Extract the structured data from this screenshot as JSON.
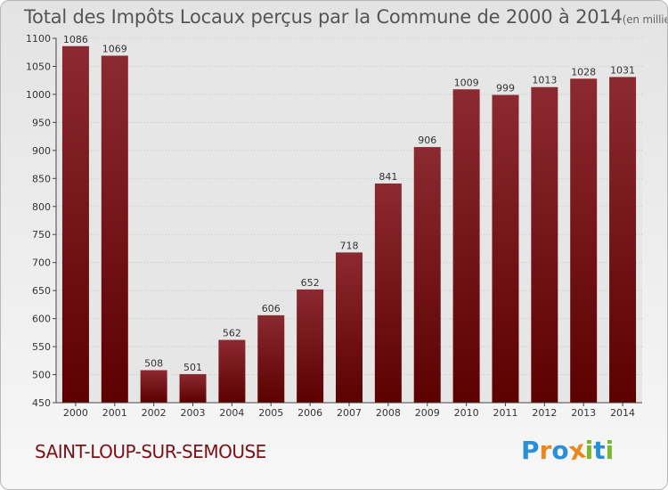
{
  "header": {
    "title": "Total des Impôts Locaux perçus par la Commune de 2000 à 2014",
    "subtitle": "(en milliers d'€)"
  },
  "footer": {
    "commune": "SAINT-LOUP-SUR-SEMOUSE",
    "logo_letters": [
      "P",
      "r",
      "o",
      "x",
      "i",
      "t",
      "i"
    ],
    "logo_colors": [
      "#2a8fd6",
      "#e8891e",
      "#2a8fd6",
      "#e8891e",
      "#78b82a",
      "#2a8fd6",
      "#78b82a"
    ]
  },
  "chart_data": {
    "type": "bar",
    "title": "Total des Impôts Locaux perçus par la Commune de 2000 à 2014",
    "subtitle": "(en milliers d'€)",
    "categories": [
      "2000",
      "2001",
      "2002",
      "2003",
      "2004",
      "2005",
      "2006",
      "2007",
      "2008",
      "2009",
      "2010",
      "2011",
      "2012",
      "2013",
      "2014"
    ],
    "values": [
      1086,
      1069,
      508,
      501,
      562,
      606,
      652,
      718,
      841,
      906,
      1009,
      999,
      1013,
      1028,
      1031
    ],
    "ylim": [
      450,
      1100
    ],
    "yticks": [
      450,
      500,
      550,
      600,
      650,
      700,
      750,
      800,
      850,
      900,
      950,
      1000,
      1050,
      1100
    ],
    "grid": true,
    "bar_color_top": "#8b2a31",
    "bar_color_bottom": "#5c0000"
  }
}
